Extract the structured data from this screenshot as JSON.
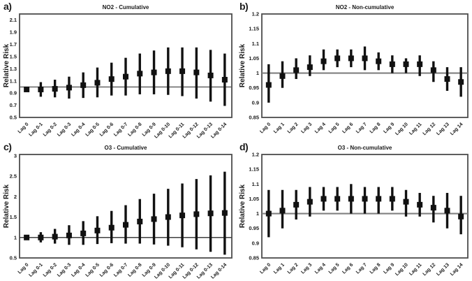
{
  "figure_background": "#ffffff",
  "marker_color": "#111111",
  "frame_color": "#4d4d4d",
  "chart_data": [
    {
      "type": "scatter",
      "variant": "error-bar",
      "panel_letter": "a)",
      "title": "NO2 - Cumulative",
      "ylabel": "Relative Risk",
      "categories": [
        "Lag 0",
        "Lag 0-1",
        "Lag 0-2",
        "Lag 0-3",
        "Lag 0-4",
        "Lag 0-5",
        "Lag 0-6",
        "Lag 0-7",
        "Lag 0-8",
        "Lag 0-9",
        "Lag 0-10",
        "Lag 0-11",
        "Lag 0-12",
        "Lag 0-13",
        "Lag 0-14"
      ],
      "center": [
        0.96,
        0.96,
        0.97,
        0.99,
        1.03,
        1.07,
        1.13,
        1.17,
        1.22,
        1.24,
        1.26,
        1.26,
        1.24,
        1.19,
        1.12
      ],
      "lower": [
        0.92,
        0.84,
        0.83,
        0.81,
        0.82,
        0.83,
        0.86,
        0.86,
        0.88,
        0.88,
        0.87,
        0.85,
        0.81,
        0.76,
        0.69
      ],
      "upper": [
        1.0,
        1.08,
        1.12,
        1.17,
        1.24,
        1.32,
        1.4,
        1.48,
        1.55,
        1.6,
        1.65,
        1.65,
        1.65,
        1.61,
        1.55
      ],
      "ylim": [
        0.5,
        2.2
      ],
      "ytick_values": [
        2.1,
        1.9,
        1.7,
        1.5,
        1.3,
        1.1,
        0.9,
        0.7,
        0.5
      ],
      "ytick_labels": [
        "2.1",
        "1.9",
        "1.7",
        "1.5",
        "1.3",
        "1.1",
        "0.9",
        "0.7",
        "0.5"
      ],
      "ref_line": 1.0,
      "grid": false,
      "legend": "none"
    },
    {
      "type": "scatter",
      "variant": "error-bar",
      "panel_letter": "b)",
      "title": "NO2 - Non-cumulative",
      "ylabel": "Relative Risk",
      "categories": [
        "Lag 0",
        "Lag 1",
        "Lag 2",
        "Lag 3",
        "Lag 4",
        "Lag 5",
        "Lag 6",
        "Lag 7",
        "Lag 8",
        "Lag 9",
        "Lag 10",
        "Lag 11",
        "Lag 12",
        "Lag 13",
        "Lag 14"
      ],
      "center": [
        0.96,
        0.99,
        1.01,
        1.02,
        1.04,
        1.05,
        1.05,
        1.05,
        1.04,
        1.03,
        1.03,
        1.03,
        1.01,
        0.98,
        0.97
      ],
      "lower": [
        0.9,
        0.95,
        0.98,
        0.99,
        1.01,
        1.02,
        1.02,
        1.01,
        1.01,
        1.0,
        1.0,
        0.99,
        0.97,
        0.94,
        0.92
      ],
      "upper": [
        1.03,
        1.04,
        1.05,
        1.06,
        1.08,
        1.08,
        1.08,
        1.09,
        1.07,
        1.06,
        1.05,
        1.06,
        1.04,
        1.02,
        1.02
      ],
      "ylim": [
        0.85,
        1.2
      ],
      "ytick_values": [
        1.2,
        1.15,
        1.1,
        1.05,
        1.0,
        0.95,
        0.9,
        0.85
      ],
      "ytick_labels": [
        "1.2",
        "1.15",
        "1.1",
        "1.05",
        "1",
        "0.95",
        "0.9",
        "0.85"
      ],
      "ref_line": 1.0,
      "grid": false,
      "legend": "none"
    },
    {
      "type": "scatter",
      "variant": "error-bar",
      "panel_letter": "c)",
      "title": "O3 - Cumulative",
      "ylabel": "Relative Risk",
      "categories": [
        "Lag 0",
        "Lag 0-1",
        "Lag 0-2",
        "Lag 0-3",
        "Lag 0-4",
        "Lag 0-5",
        "Lag 0-6",
        "Lag 0-7",
        "Lag 0-8",
        "Lag 0-9",
        "Lag 0-10",
        "Lag 0-11",
        "Lag 0-12",
        "Lag 0-13",
        "Lag 0-14"
      ],
      "center": [
        1.0,
        1.0,
        1.02,
        1.05,
        1.1,
        1.17,
        1.24,
        1.31,
        1.39,
        1.45,
        1.5,
        1.54,
        1.57,
        1.59,
        1.6
      ],
      "lower": [
        0.95,
        0.88,
        0.85,
        0.82,
        0.82,
        0.84,
        0.86,
        0.85,
        0.85,
        0.83,
        0.8,
        0.76,
        0.71,
        0.65,
        0.58
      ],
      "upper": [
        1.06,
        1.13,
        1.21,
        1.3,
        1.4,
        1.52,
        1.65,
        1.79,
        1.94,
        2.07,
        2.19,
        2.32,
        2.43,
        2.52,
        2.61
      ],
      "ylim": [
        0.5,
        3.03
      ],
      "ytick_values": [
        3,
        2.5,
        2,
        1.5,
        1,
        0.5
      ],
      "ytick_labels": [
        "3",
        "2.5",
        "2",
        "1.5",
        "1",
        "0.5"
      ],
      "ref_line": 1.0,
      "grid": false,
      "legend": "none"
    },
    {
      "type": "scatter",
      "variant": "error-bar",
      "panel_letter": "d)",
      "title": "O3 - Non-cumulative",
      "ylabel": "Relative Risk",
      "categories": [
        "Lag 0",
        "Lag 1",
        "Lag 2",
        "Lag 3",
        "Lag 4",
        "Lag 5",
        "Lag 6",
        "Lag 7",
        "Lag 8",
        "Lag 9",
        "Lag 10",
        "Lag 11",
        "Lag 12",
        "Lag 13",
        "Lag 14"
      ],
      "center": [
        1.0,
        1.01,
        1.03,
        1.04,
        1.05,
        1.05,
        1.05,
        1.05,
        1.05,
        1.05,
        1.04,
        1.03,
        1.02,
        1.01,
        0.99
      ],
      "lower": [
        0.92,
        0.95,
        0.98,
        0.99,
        1.01,
        1.01,
        1.0,
        1.0,
        1.0,
        1.01,
        0.99,
        0.99,
        0.97,
        0.95,
        0.93
      ],
      "upper": [
        1.08,
        1.08,
        1.08,
        1.09,
        1.09,
        1.09,
        1.1,
        1.09,
        1.09,
        1.09,
        1.08,
        1.07,
        1.06,
        1.07,
        1.06
      ],
      "ylim": [
        0.85,
        1.2
      ],
      "ytick_values": [
        1.2,
        1.15,
        1.1,
        1.05,
        1.0,
        0.95,
        0.9,
        0.85
      ],
      "ytick_labels": [
        "1.2",
        "1.15",
        "1.1",
        "1.05",
        "1",
        "0.95",
        "0.9",
        "0.85"
      ],
      "ref_line": 1.0,
      "grid": false,
      "legend": "none"
    }
  ]
}
